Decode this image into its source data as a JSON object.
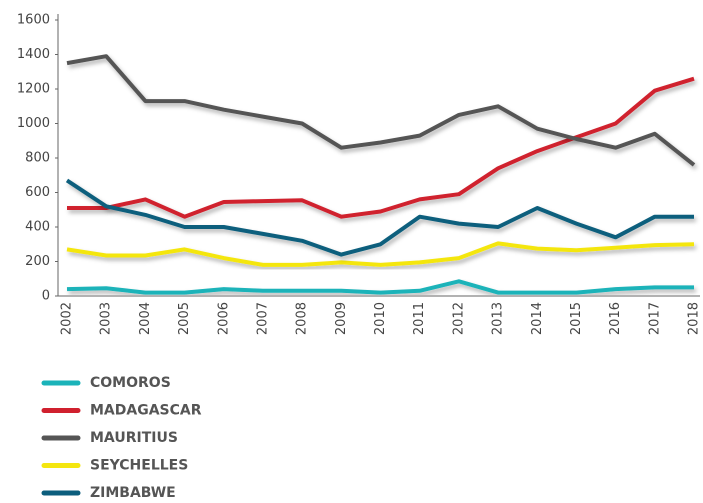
{
  "chart_data": {
    "type": "line",
    "categories": [
      "2002",
      "2003",
      "2004",
      "2005",
      "2006",
      "2007",
      "2008",
      "2009",
      "2010",
      "2011",
      "2012",
      "2013",
      "2014",
      "2015",
      "2016",
      "2017",
      "2018"
    ],
    "ylim": [
      0,
      1600
    ],
    "yticks": [
      0,
      200,
      400,
      600,
      800,
      1000,
      1200,
      1400,
      1600
    ],
    "series": [
      {
        "name": "COMOROS",
        "color": "#1bb3b9",
        "values": [
          40,
          45,
          20,
          20,
          40,
          30,
          30,
          30,
          20,
          30,
          85,
          20,
          20,
          20,
          40,
          50,
          50
        ]
      },
      {
        "name": "MADAGASCAR",
        "color": "#d0202e",
        "values": [
          510,
          510,
          560,
          460,
          545,
          550,
          555,
          460,
          490,
          560,
          590,
          740,
          840,
          920,
          1000,
          1190,
          1260
        ]
      },
      {
        "name": "MAURITIUS",
        "color": "#555555",
        "values": [
          1350,
          1390,
          1130,
          1130,
          1080,
          1040,
          1000,
          860,
          890,
          930,
          1050,
          1100,
          970,
          910,
          860,
          940,
          760
        ]
      },
      {
        "name": "SEYCHELLES",
        "color": "#f4e60f",
        "values": [
          270,
          235,
          235,
          270,
          220,
          180,
          180,
          195,
          180,
          195,
          220,
          305,
          275,
          265,
          280,
          295,
          300
        ]
      },
      {
        "name": "ZIMBABWE",
        "color": "#0c5e7d",
        "values": [
          670,
          520,
          470,
          400,
          400,
          360,
          320,
          240,
          300,
          460,
          420,
          400,
          510,
          420,
          340,
          460,
          460
        ]
      }
    ]
  }
}
